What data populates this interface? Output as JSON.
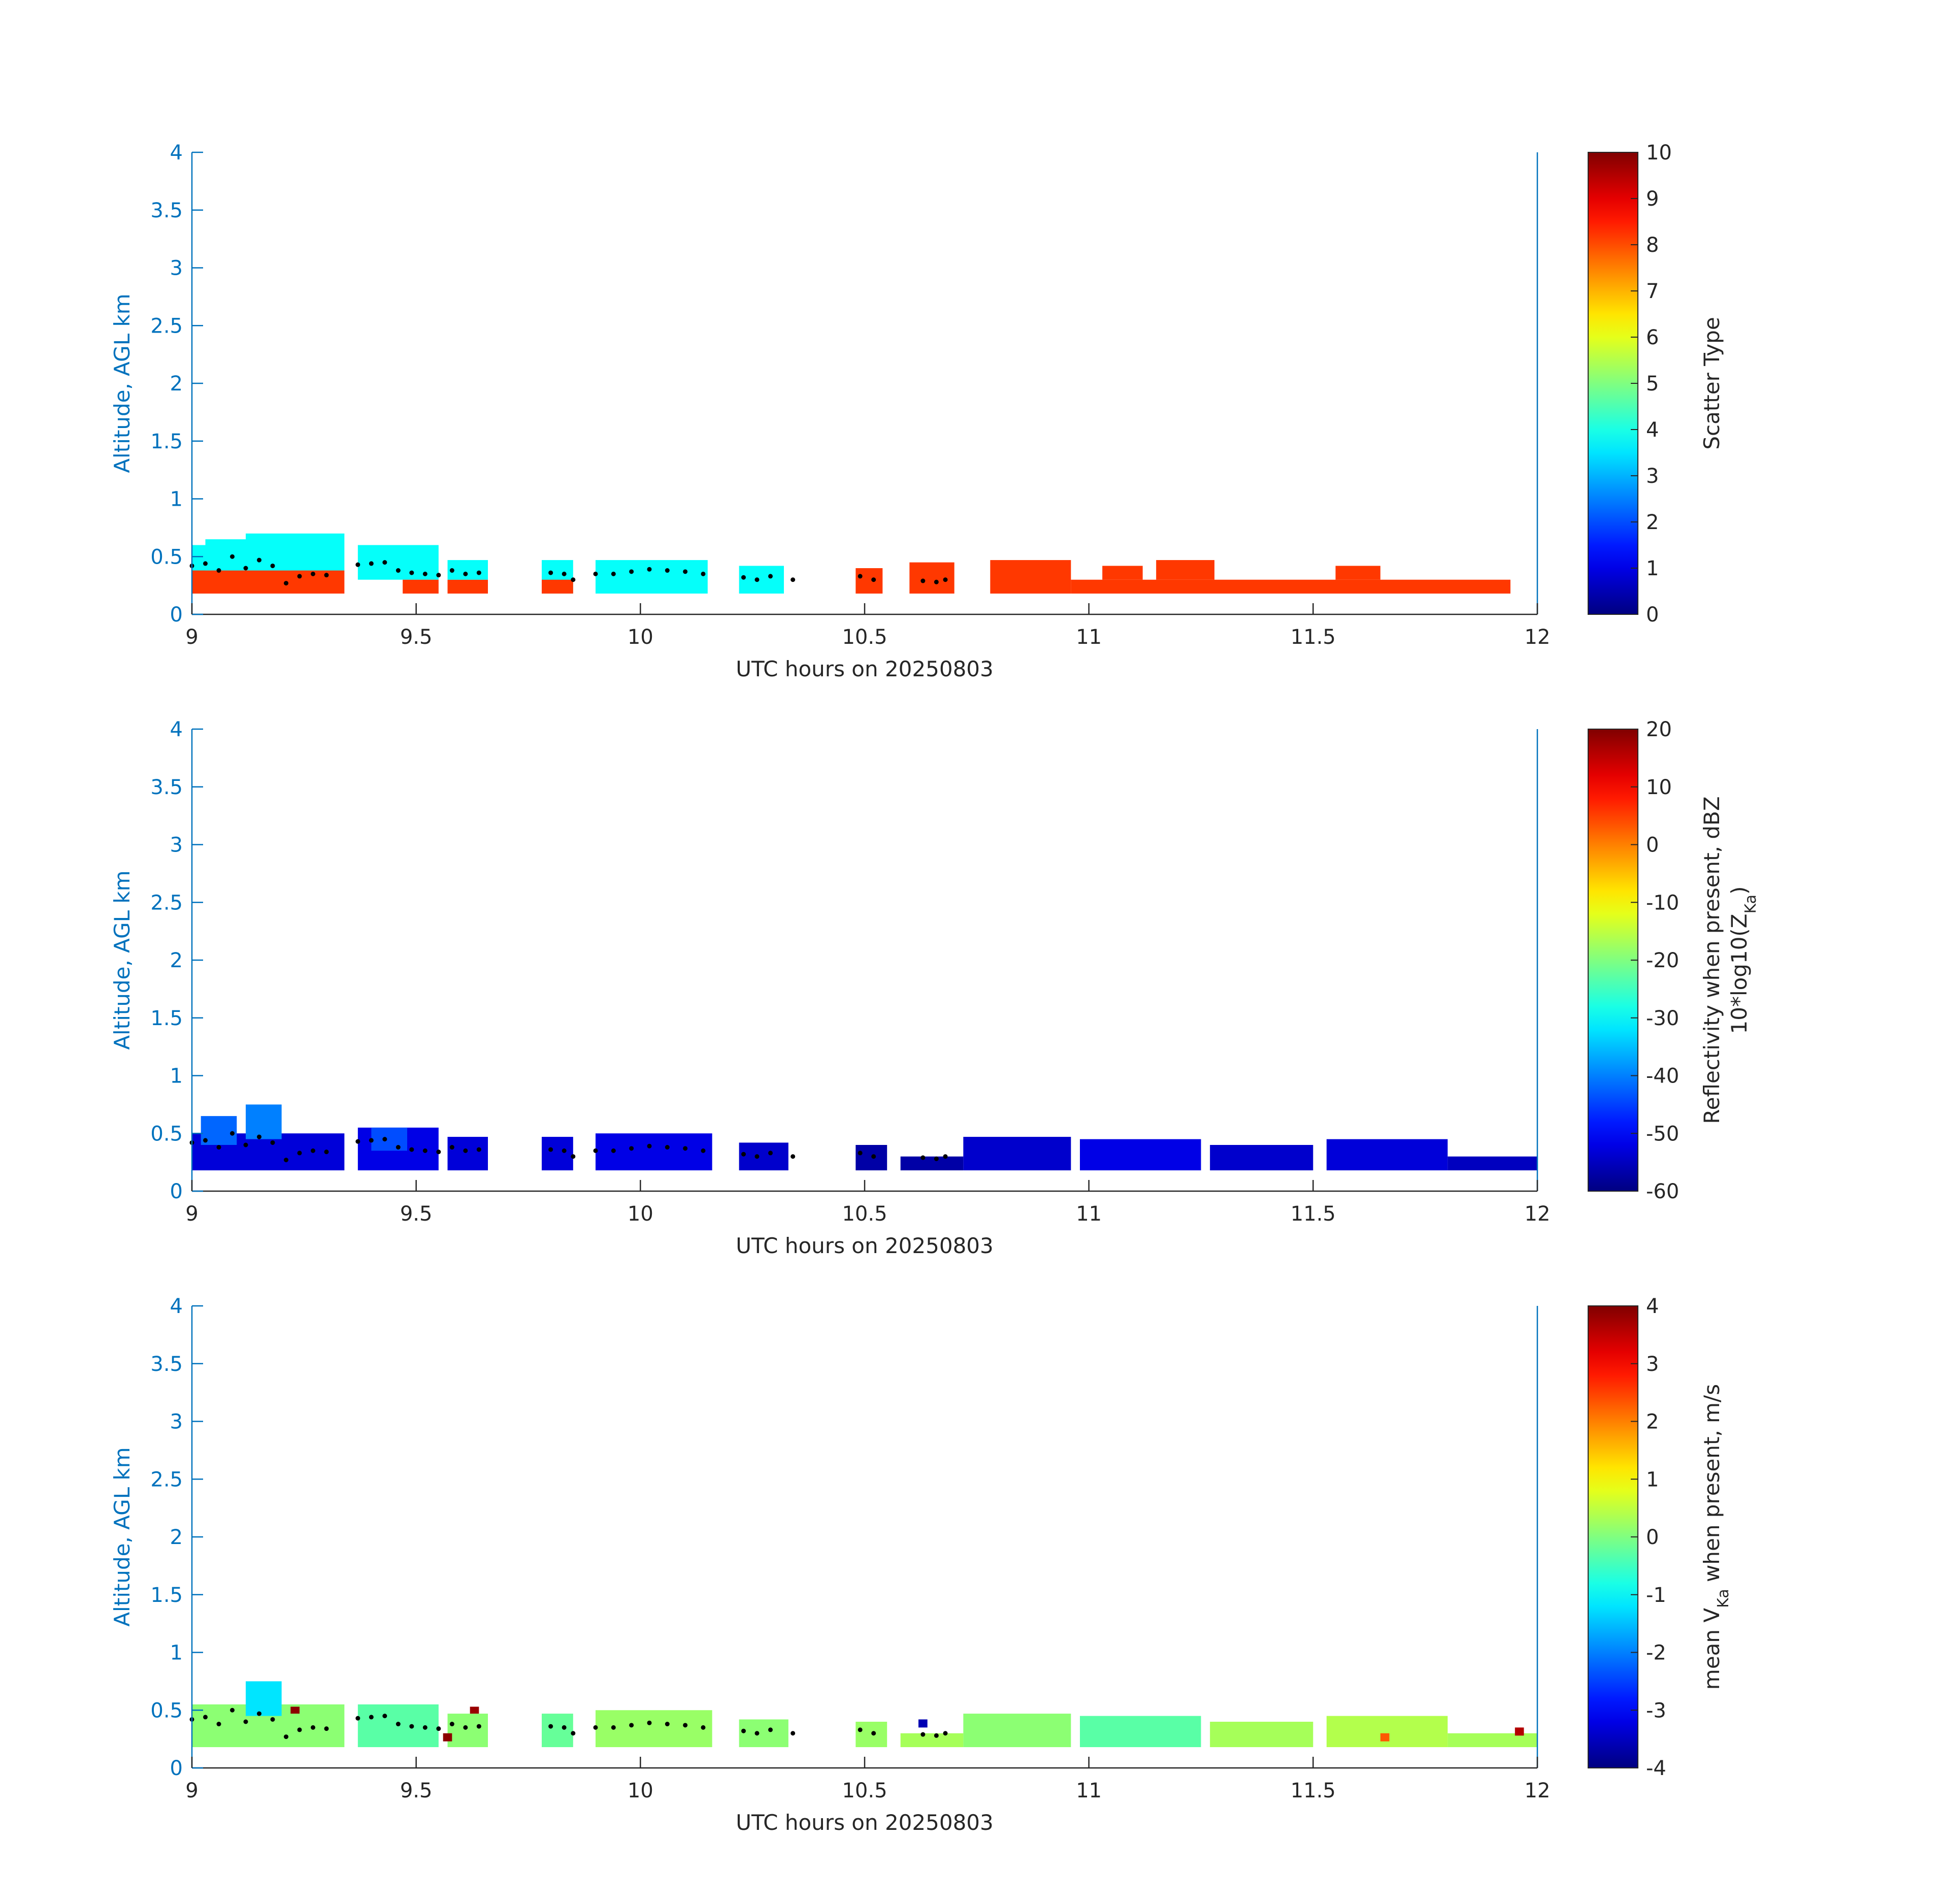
{
  "colors": {
    "axis": "#0072BD",
    "text": "#262626",
    "dots": "#000000"
  },
  "chart_data": [
    {
      "type": "heatmap",
      "xlabel": "UTC hours on 20250803",
      "ylabel": "Altitude, AGL km",
      "xlim": [
        9,
        12
      ],
      "ylim": [
        0,
        4
      ],
      "xticks": [
        "9",
        "9.5",
        "10",
        "10.5",
        "11",
        "11.5",
        "12"
      ],
      "yticks": [
        "0",
        "0.5",
        "1",
        "1.5",
        "2",
        "2.5",
        "3",
        "3.5",
        "4"
      ],
      "colorbar": {
        "label": "Scatter Type",
        "range": [
          0,
          10
        ],
        "ticks": [
          "0",
          "1",
          "2",
          "3",
          "4",
          "5",
          "6",
          "7",
          "8",
          "9",
          "10"
        ],
        "colormap": "jet"
      },
      "cells": [
        {
          "x": 9.0,
          "x2": 9.03,
          "y": 0.18,
          "y2": 0.6,
          "v": 3.8
        },
        {
          "x": 9.0,
          "x2": 9.12,
          "y": 0.18,
          "y2": 0.38,
          "v": 8.2
        },
        {
          "x": 9.03,
          "x2": 9.12,
          "y": 0.38,
          "y2": 0.65,
          "v": 3.8
        },
        {
          "x": 9.12,
          "x2": 9.34,
          "y": 0.18,
          "y2": 0.38,
          "v": 8.2
        },
        {
          "x": 9.12,
          "x2": 9.34,
          "y": 0.38,
          "y2": 0.7,
          "v": 3.8
        },
        {
          "x": 9.37,
          "x2": 9.55,
          "y": 0.3,
          "y2": 0.6,
          "v": 3.8
        },
        {
          "x": 9.47,
          "x2": 9.55,
          "y": 0.18,
          "y2": 0.3,
          "v": 8.2
        },
        {
          "x": 9.57,
          "x2": 9.66,
          "y": 0.18,
          "y2": 0.3,
          "v": 8.2
        },
        {
          "x": 9.57,
          "x2": 9.66,
          "y": 0.3,
          "y2": 0.47,
          "v": 3.8
        },
        {
          "x": 9.78,
          "x2": 9.85,
          "y": 0.18,
          "y2": 0.47,
          "v": 3.8
        },
        {
          "x": 9.78,
          "x2": 9.85,
          "y": 0.18,
          "y2": 0.3,
          "v": 8.2
        },
        {
          "x": 9.9,
          "x2": 10.15,
          "y": 0.18,
          "y2": 0.47,
          "v": 3.8
        },
        {
          "x": 10.22,
          "x2": 10.32,
          "y": 0.18,
          "y2": 0.42,
          "v": 3.8
        },
        {
          "x": 10.48,
          "x2": 10.54,
          "y": 0.18,
          "y2": 0.4,
          "v": 8.2
        },
        {
          "x": 10.6,
          "x2": 10.7,
          "y": 0.18,
          "y2": 0.45,
          "v": 8.2
        },
        {
          "x": 10.78,
          "x2": 10.96,
          "y": 0.18,
          "y2": 0.47,
          "v": 8.2
        },
        {
          "x": 10.96,
          "x2": 11.94,
          "y": 0.18,
          "y2": 0.3,
          "v": 8.2
        },
        {
          "x": 11.03,
          "x2": 11.12,
          "y": 0.3,
          "y2": 0.42,
          "v": 8.2
        },
        {
          "x": 11.15,
          "x2": 11.28,
          "y": 0.3,
          "y2": 0.47,
          "v": 8.2
        },
        {
          "x": 11.55,
          "x2": 11.65,
          "y": 0.3,
          "y2": 0.42,
          "v": 8.2
        }
      ]
    },
    {
      "type": "heatmap",
      "xlabel": "UTC hours on 20250803",
      "ylabel": "Altitude, AGL km",
      "xlim": [
        9,
        12
      ],
      "ylim": [
        0,
        4
      ],
      "xticks": [
        "9",
        "9.5",
        "10",
        "10.5",
        "11",
        "11.5",
        "12"
      ],
      "yticks": [
        "0",
        "0.5",
        "1",
        "1.5",
        "2",
        "2.5",
        "3",
        "3.5",
        "4"
      ],
      "colorbar": {
        "label": "Reflectivity when present, dBZ",
        "label2": "10*log10(Z",
        "label2_sub": "Ka",
        "label2_end": ")",
        "range": [
          -60,
          20
        ],
        "ticks": [
          "-60",
          "-50",
          "-40",
          "-30",
          "-20",
          "-10",
          "0",
          "10",
          "20"
        ],
        "colormap": "jet"
      },
      "cells": [
        {
          "x": 9.0,
          "x2": 9.34,
          "y": 0.18,
          "y2": 0.5,
          "v": -53
        },
        {
          "x": 9.02,
          "x2": 9.1,
          "y": 0.4,
          "y2": 0.65,
          "v": -42
        },
        {
          "x": 9.12,
          "x2": 9.2,
          "y": 0.45,
          "y2": 0.75,
          "v": -40
        },
        {
          "x": 9.37,
          "x2": 9.55,
          "y": 0.18,
          "y2": 0.55,
          "v": -52
        },
        {
          "x": 9.4,
          "x2": 9.48,
          "y": 0.35,
          "y2": 0.55,
          "v": -44
        },
        {
          "x": 9.57,
          "x2": 9.66,
          "y": 0.18,
          "y2": 0.47,
          "v": -53
        },
        {
          "x": 9.78,
          "x2": 9.85,
          "y": 0.18,
          "y2": 0.47,
          "v": -53
        },
        {
          "x": 9.9,
          "x2": 10.16,
          "y": 0.18,
          "y2": 0.5,
          "v": -52
        },
        {
          "x": 10.22,
          "x2": 10.33,
          "y": 0.18,
          "y2": 0.42,
          "v": -54
        },
        {
          "x": 10.48,
          "x2": 10.55,
          "y": 0.18,
          "y2": 0.4,
          "v": -57
        },
        {
          "x": 10.58,
          "x2": 10.72,
          "y": 0.18,
          "y2": 0.3,
          "v": -57
        },
        {
          "x": 10.72,
          "x2": 10.96,
          "y": 0.18,
          "y2": 0.47,
          "v": -54
        },
        {
          "x": 10.98,
          "x2": 11.25,
          "y": 0.18,
          "y2": 0.45,
          "v": -52
        },
        {
          "x": 11.27,
          "x2": 11.5,
          "y": 0.18,
          "y2": 0.4,
          "v": -54
        },
        {
          "x": 11.53,
          "x2": 11.8,
          "y": 0.18,
          "y2": 0.45,
          "v": -53
        },
        {
          "x": 11.8,
          "x2": 12.0,
          "y": 0.18,
          "y2": 0.3,
          "v": -55
        }
      ]
    },
    {
      "type": "heatmap",
      "xlabel": "UTC hours on 20250803",
      "ylabel": "Altitude, AGL km",
      "xlim": [
        9,
        12
      ],
      "ylim": [
        0,
        4
      ],
      "xticks": [
        "9",
        "9.5",
        "10",
        "10.5",
        "11",
        "11.5",
        "12"
      ],
      "yticks": [
        "0",
        "0.5",
        "1",
        "1.5",
        "2",
        "2.5",
        "3",
        "3.5",
        "4"
      ],
      "colorbar": {
        "label": "mean V",
        "label_sub": "Ka",
        "label_end": " when present, m/s",
        "range": [
          -4,
          4
        ],
        "ticks": [
          "-4",
          "-3",
          "-2",
          "-1",
          "0",
          "1",
          "2",
          "3",
          "4"
        ],
        "colormap": "jet"
      },
      "cells": [
        {
          "x": 9.0,
          "x2": 9.34,
          "y": 0.18,
          "y2": 0.55,
          "v": 0.1
        },
        {
          "x": 9.12,
          "x2": 9.2,
          "y": 0.45,
          "y2": 0.75,
          "v": -1.2
        },
        {
          "x": 9.37,
          "x2": 9.55,
          "y": 0.18,
          "y2": 0.55,
          "v": -0.3
        },
        {
          "x": 9.57,
          "x2": 9.66,
          "y": 0.18,
          "y2": 0.47,
          "v": 0.1
        },
        {
          "x": 9.78,
          "x2": 9.85,
          "y": 0.18,
          "y2": 0.47,
          "v": -0.2
        },
        {
          "x": 9.9,
          "x2": 10.16,
          "y": 0.18,
          "y2": 0.5,
          "v": 0.2
        },
        {
          "x": 10.22,
          "x2": 10.33,
          "y": 0.18,
          "y2": 0.42,
          "v": 0.1
        },
        {
          "x": 10.48,
          "x2": 10.55,
          "y": 0.18,
          "y2": 0.4,
          "v": 0.2
        },
        {
          "x": 10.58,
          "x2": 10.72,
          "y": 0.18,
          "y2": 0.3,
          "v": 0.3
        },
        {
          "x": 10.72,
          "x2": 10.96,
          "y": 0.18,
          "y2": 0.47,
          "v": 0.1
        },
        {
          "x": 10.98,
          "x2": 11.25,
          "y": 0.18,
          "y2": 0.45,
          "v": -0.3
        },
        {
          "x": 11.27,
          "x2": 11.5,
          "y": 0.18,
          "y2": 0.4,
          "v": 0.3
        },
        {
          "x": 11.53,
          "x2": 11.8,
          "y": 0.18,
          "y2": 0.45,
          "v": 0.4
        },
        {
          "x": 11.8,
          "x2": 12.0,
          "y": 0.18,
          "y2": 0.3,
          "v": 0.3
        },
        {
          "x": 9.22,
          "x2": 9.24,
          "y": 0.47,
          "y2": 0.53,
          "v": 3.9
        },
        {
          "x": 9.56,
          "x2": 9.58,
          "y": 0.23,
          "y2": 0.3,
          "v": 3.9
        },
        {
          "x": 9.62,
          "x2": 9.64,
          "y": 0.47,
          "y2": 0.53,
          "v": 3.8
        },
        {
          "x": 10.62,
          "x2": 10.64,
          "y": 0.35,
          "y2": 0.42,
          "v": -3.6
        },
        {
          "x": 11.95,
          "x2": 11.97,
          "y": 0.28,
          "y2": 0.35,
          "v": 3.6
        },
        {
          "x": 11.65,
          "x2": 11.67,
          "y": 0.23,
          "y2": 0.3,
          "v": 2.3
        }
      ]
    }
  ],
  "height_dots": [
    [
      9.0,
      0.42
    ],
    [
      9.03,
      0.44
    ],
    [
      9.06,
      0.38
    ],
    [
      9.09,
      0.5
    ],
    [
      9.12,
      0.4
    ],
    [
      9.15,
      0.47
    ],
    [
      9.18,
      0.42
    ],
    [
      9.21,
      0.27
    ],
    [
      9.24,
      0.33
    ],
    [
      9.27,
      0.35
    ],
    [
      9.3,
      0.34
    ],
    [
      9.37,
      0.43
    ],
    [
      9.4,
      0.44
    ],
    [
      9.43,
      0.45
    ],
    [
      9.46,
      0.38
    ],
    [
      9.49,
      0.36
    ],
    [
      9.52,
      0.35
    ],
    [
      9.55,
      0.34
    ],
    [
      9.58,
      0.38
    ],
    [
      9.61,
      0.35
    ],
    [
      9.64,
      0.36
    ],
    [
      9.8,
      0.36
    ],
    [
      9.83,
      0.35
    ],
    [
      9.85,
      0.3
    ],
    [
      9.9,
      0.35
    ],
    [
      9.94,
      0.35
    ],
    [
      9.98,
      0.37
    ],
    [
      10.02,
      0.39
    ],
    [
      10.06,
      0.38
    ],
    [
      10.1,
      0.37
    ],
    [
      10.14,
      0.35
    ],
    [
      10.23,
      0.32
    ],
    [
      10.26,
      0.3
    ],
    [
      10.29,
      0.33
    ],
    [
      10.34,
      0.3
    ],
    [
      10.49,
      0.33
    ],
    [
      10.52,
      0.3
    ],
    [
      10.63,
      0.29
    ],
    [
      10.66,
      0.28
    ],
    [
      10.68,
      0.3
    ]
  ]
}
